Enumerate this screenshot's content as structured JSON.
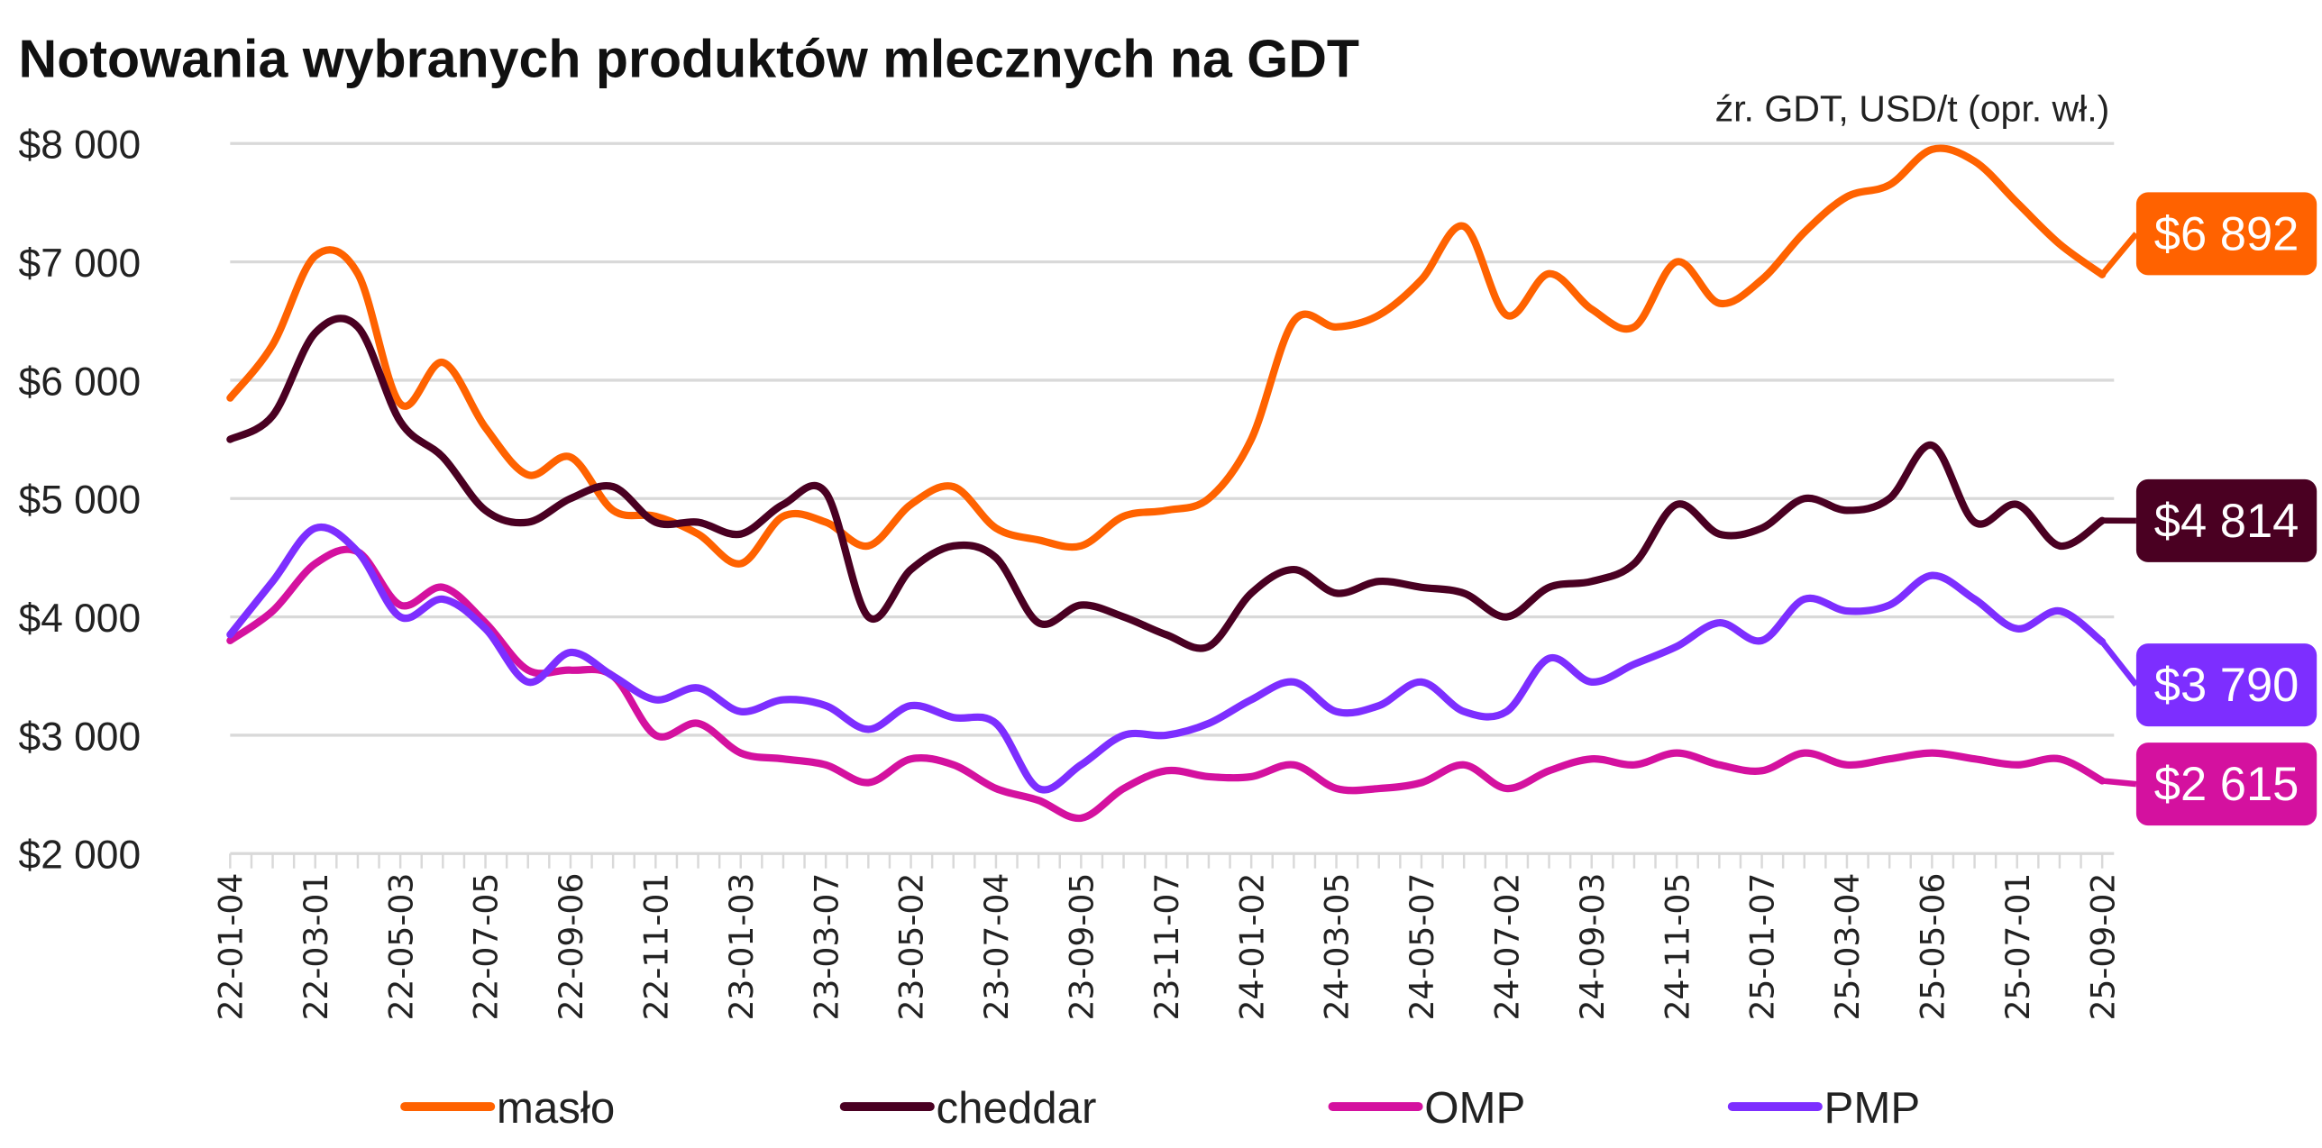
{
  "chart_data": {
    "type": "line",
    "title": "Notowania wybranych produktów mlecznych na GDT",
    "subtitle": "źr. GDT, USD/t (opr. wł.)",
    "xlabel": "",
    "ylabel": "",
    "ylim": [
      2000,
      8000
    ],
    "yticks": [
      2000,
      3000,
      4000,
      5000,
      6000,
      7000,
      8000
    ],
    "ytick_labels": [
      "$2 000",
      "$3 000",
      "$4 000",
      "$5 000",
      "$6 000",
      "$7 000",
      "$8 000"
    ],
    "grid": true,
    "legend": "bottom",
    "x_tick_labels": [
      "22-01-04",
      "22-03-01",
      "22-05-03",
      "22-07-05",
      "22-09-06",
      "22-11-01",
      "23-01-03",
      "23-03-07",
      "23-05-02",
      "23-07-04",
      "23-09-05",
      "23-11-07",
      "24-01-02",
      "24-03-05",
      "24-05-07",
      "24-07-02",
      "24-09-03",
      "24-11-05",
      "25-01-07",
      "25-03-04",
      "25-05-06",
      "25-07-01",
      "25-09-02"
    ],
    "series": [
      {
        "name": "masło",
        "color": "#FF6200",
        "last_label": "$6 892",
        "values": [
          5850,
          6300,
          7050,
          6900,
          5800,
          6150,
          5600,
          5200,
          5350,
          4900,
          4850,
          4700,
          4450,
          4850,
          4800,
          4600,
          4950,
          5100,
          4750,
          4650,
          4600,
          4850,
          4900,
          5000,
          5500,
          6500,
          6450,
          6550,
          6850,
          7300,
          6550,
          6900,
          6600,
          6450,
          7000,
          6650,
          6850,
          7250,
          7550,
          7650,
          7950,
          7850,
          7500,
          7150,
          6892
        ]
      },
      {
        "name": "cheddar",
        "color": "#4A0022",
        "last_label": "$4 814",
        "values": [
          5500,
          5700,
          6400,
          6450,
          5650,
          5350,
          4900,
          4800,
          5000,
          5100,
          4800,
          4800,
          4700,
          4950,
          5050,
          4000,
          4400,
          4600,
          4500,
          3950,
          4100,
          4000,
          3850,
          3750,
          4200,
          4400,
          4200,
          4300,
          4250,
          4200,
          4000,
          4250,
          4300,
          4450,
          4950,
          4700,
          4750,
          5000,
          4900,
          5000,
          5450,
          4800,
          4950,
          4600,
          4814
        ]
      },
      {
        "name": "OMP",
        "color": "#D4119F",
        "last_label": "$2 615",
        "values": [
          3800,
          4050,
          4450,
          4550,
          4100,
          4250,
          3950,
          3550,
          3550,
          3500,
          3000,
          3100,
          2850,
          2800,
          2750,
          2600,
          2800,
          2750,
          2550,
          2450,
          2300,
          2550,
          2700,
          2650,
          2650,
          2750,
          2550,
          2550,
          2600,
          2750,
          2550,
          2700,
          2800,
          2750,
          2850,
          2750,
          2700,
          2850,
          2750,
          2800,
          2850,
          2800,
          2750,
          2800,
          2615
        ]
      },
      {
        "name": "PMP",
        "color": "#7D2EFF",
        "last_label": "$3 790",
        "values": [
          3850,
          4300,
          4750,
          4550,
          4000,
          4150,
          3900,
          3450,
          3700,
          3500,
          3300,
          3400,
          3200,
          3300,
          3250,
          3050,
          3250,
          3150,
          3100,
          2550,
          2750,
          3000,
          3000,
          3100,
          3300,
          3450,
          3200,
          3250,
          3450,
          3200,
          3200,
          3650,
          3450,
          3600,
          3750,
          3950,
          3800,
          4150,
          4050,
          4100,
          4350,
          4150,
          3900,
          4050,
          3790
        ]
      }
    ]
  }
}
